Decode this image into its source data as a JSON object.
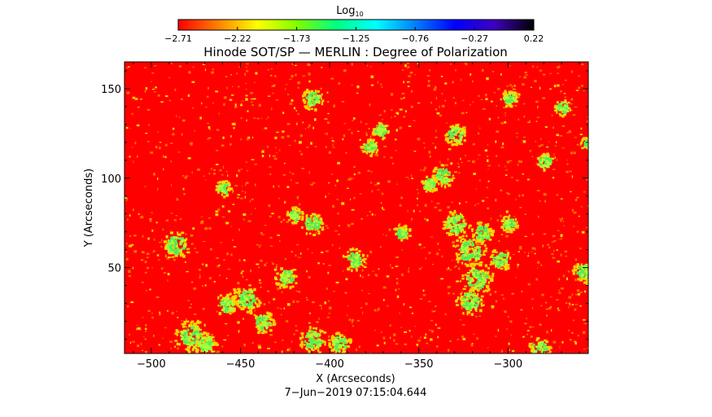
{
  "chart_data": {
    "type": "heatmap",
    "title": "Hinode SOT/SP — MERLIN : Degree of Polarization",
    "xlabel": "X (Arcseconds)",
    "ylabel": "Y (Arcseconds)",
    "date_label": "7−Jun−2019 07:15:04.644",
    "xlim": [
      -515,
      -255
    ],
    "ylim": [
      2,
      165
    ],
    "x_ticks": [
      {
        "value": -500,
        "label": "−500"
      },
      {
        "value": -450,
        "label": "−450"
      },
      {
        "value": -400,
        "label": "−400"
      },
      {
        "value": -350,
        "label": "−350"
      },
      {
        "value": -300,
        "label": "−300"
      }
    ],
    "y_ticks": [
      {
        "value": 50,
        "label": "50"
      },
      {
        "value": 100,
        "label": "100"
      },
      {
        "value": 150,
        "label": "150"
      }
    ],
    "colorbar": {
      "label_base": "Log",
      "label_sub": "10",
      "range": [
        -2.71,
        0.22
      ],
      "ticks": [
        "−2.71",
        "−2.22",
        "−1.73",
        "−1.25",
        "−0.76",
        "−0.27",
        "0.22"
      ],
      "colors": [
        "#ff0000",
        "#ff8000",
        "#ffff00",
        "#80ff00",
        "#00ff80",
        "#00ffff",
        "#0080ff",
        "#0000ff",
        "#4000c0",
        "#000000"
      ]
    },
    "background_color": "#ff0000",
    "field_colors": {
      "low": "#ff0000",
      "speckle": "#ff6a00",
      "mid": "#ffd400",
      "plage": "#a8ff3a",
      "core": "#55ee55"
    },
    "plage_regions": [
      {
        "x": -487,
        "y": 63,
        "r": 5
      },
      {
        "x": -478,
        "y": 12,
        "r": 6
      },
      {
        "x": -470,
        "y": 8,
        "r": 4
      },
      {
        "x": -458,
        "y": 30,
        "r": 4
      },
      {
        "x": -447,
        "y": 33,
        "r": 5
      },
      {
        "x": -438,
        "y": 20,
        "r": 4
      },
      {
        "x": -460,
        "y": 95,
        "r": 3
      },
      {
        "x": -410,
        "y": 75,
        "r": 4
      },
      {
        "x": -420,
        "y": 80,
        "r": 3
      },
      {
        "x": -425,
        "y": 45,
        "r": 4
      },
      {
        "x": -410,
        "y": 10,
        "r": 5
      },
      {
        "x": -395,
        "y": 8,
        "r": 4
      },
      {
        "x": -387,
        "y": 55,
        "r": 4
      },
      {
        "x": -378,
        "y": 118,
        "r": 3
      },
      {
        "x": -372,
        "y": 127,
        "r": 3
      },
      {
        "x": -410,
        "y": 145,
        "r": 4
      },
      {
        "x": -360,
        "y": 70,
        "r": 3
      },
      {
        "x": -345,
        "y": 97,
        "r": 3
      },
      {
        "x": -337,
        "y": 102,
        "r": 4
      },
      {
        "x": -330,
        "y": 75,
        "r": 5
      },
      {
        "x": -322,
        "y": 60,
        "r": 6
      },
      {
        "x": -318,
        "y": 45,
        "r": 6
      },
      {
        "x": -322,
        "y": 32,
        "r": 5
      },
      {
        "x": -315,
        "y": 70,
        "r": 4
      },
      {
        "x": -305,
        "y": 55,
        "r": 4
      },
      {
        "x": -300,
        "y": 75,
        "r": 3
      },
      {
        "x": -330,
        "y": 125,
        "r": 4
      },
      {
        "x": -300,
        "y": 145,
        "r": 3
      },
      {
        "x": -280,
        "y": 110,
        "r": 3
      },
      {
        "x": -283,
        "y": 5,
        "r": 4
      },
      {
        "x": -270,
        "y": 140,
        "r": 3
      },
      {
        "x": -258,
        "y": 48,
        "r": 4
      },
      {
        "x": -255,
        "y": 120,
        "r": 3
      }
    ]
  }
}
